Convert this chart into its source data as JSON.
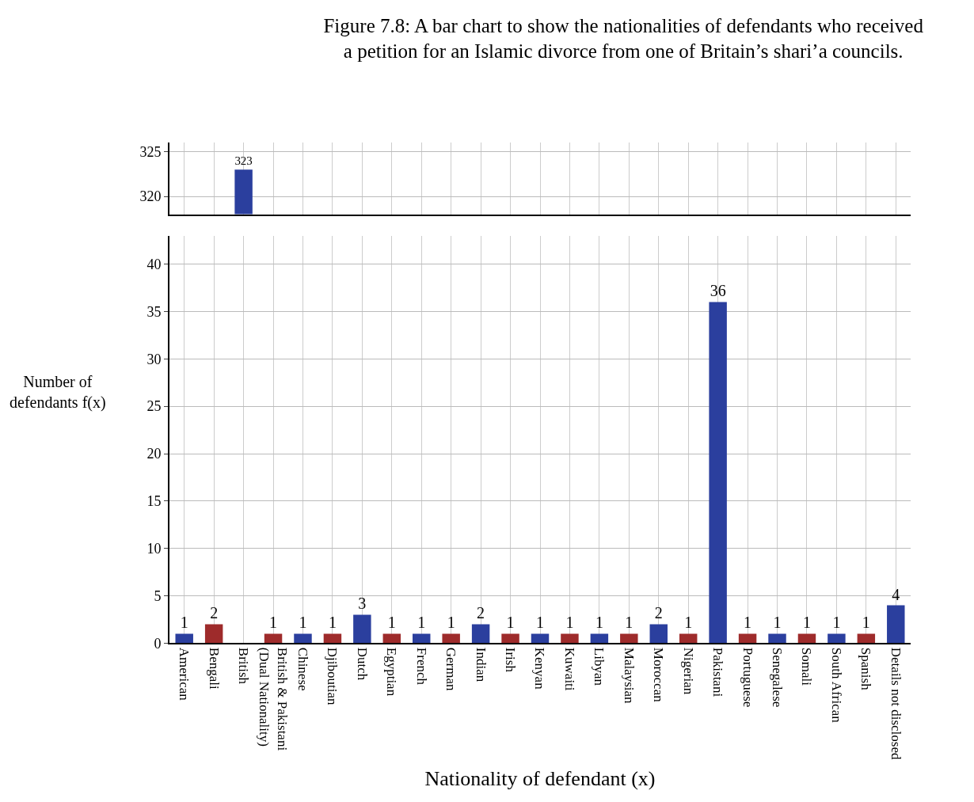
{
  "chart_data": [
    {
      "type": "bar",
      "title": "Figure 7.8: A bar chart to show the nationalities of defendants who received a petition for an Islamic divorce from one of Britain’s shari’a councils.",
      "values": [
        null,
        null,
        323,
        null,
        null,
        null,
        null,
        null,
        null,
        null,
        null,
        null,
        null,
        null,
        null,
        null,
        null,
        null,
        null,
        null,
        null,
        null,
        null,
        null,
        null
      ],
      "colors": [
        "#2b3f9e",
        "#9e2b2b",
        "#2b3f9e",
        "#9e2b2b",
        "#2b3f9e",
        "#9e2b2b",
        "#2b3f9e",
        "#9e2b2b",
        "#2b3f9e",
        "#9e2b2b",
        "#2b3f9e",
        "#9e2b2b",
        "#2b3f9e",
        "#9e2b2b",
        "#2b3f9e",
        "#9e2b2b",
        "#2b3f9e",
        "#9e2b2b",
        "#2b3f9e",
        "#9e2b2b",
        "#2b3f9e",
        "#9e2b2b",
        "#2b3f9e",
        "#9e2b2b",
        "#2b3f9e"
      ],
      "ylim": [
        318,
        326
      ],
      "yticks": [
        320,
        325
      ],
      "data_labels": true,
      "grid": true,
      "tick_labels": "y"
    },
    {
      "type": "bar",
      "xlabel": "Nationality of defendant (x)",
      "ylabel": "Number of defendants f(x)",
      "categories": [
        "American",
        "Bengali",
        "British",
        "British & Pakistani (Dual Nationality)",
        "Chinese",
        "Djiboutian",
        "Dutch",
        "Egyptian",
        "French",
        "German",
        "Indian",
        "Irish",
        "Kenyan",
        "Kuwaiti",
        "Libyan",
        "Malaysian",
        "Moroccan",
        "Nigerian",
        "Pakistani",
        "Portuguese",
        "Senegalese",
        "Somali",
        "South African",
        "Spanish",
        "Details not disclosed"
      ],
      "values": [
        1,
        2,
        null,
        1,
        1,
        1,
        3,
        1,
        1,
        1,
        2,
        1,
        1,
        1,
        1,
        1,
        2,
        1,
        36,
        1,
        1,
        1,
        1,
        1,
        4
      ],
      "colors": [
        "#2b3f9e",
        "#9e2b2b",
        "#2b3f9e",
        "#9e2b2b",
        "#2b3f9e",
        "#9e2b2b",
        "#2b3f9e",
        "#9e2b2b",
        "#2b3f9e",
        "#9e2b2b",
        "#2b3f9e",
        "#9e2b2b",
        "#2b3f9e",
        "#9e2b2b",
        "#2b3f9e",
        "#9e2b2b",
        "#2b3f9e",
        "#9e2b2b",
        "#2b3f9e",
        "#9e2b2b",
        "#2b3f9e",
        "#9e2b2b",
        "#2b3f9e",
        "#9e2b2b",
        "#2b3f9e"
      ],
      "ylim": [
        0,
        43
      ],
      "yticks": [
        0,
        5,
        10,
        15,
        20,
        25,
        30,
        35,
        40
      ],
      "data_labels": true,
      "grid": true
    }
  ]
}
